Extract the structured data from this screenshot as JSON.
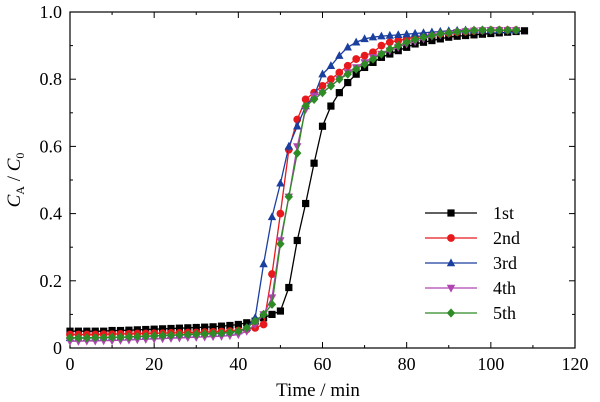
{
  "chart_data": {
    "type": "line",
    "xlabel": "Time / min",
    "ylabel_parts": {
      "c": "C",
      "a": "A",
      "slash": " / ",
      "c2": "C",
      "zero": "0"
    },
    "xlim": [
      0,
      120
    ],
    "ylim": [
      0,
      1.0
    ],
    "x_ticks": [
      "0",
      "20",
      "40",
      "60",
      "80",
      "100",
      "120"
    ],
    "y_ticks": [
      "0",
      "0.2",
      "0.4",
      "0.6",
      "0.8",
      "1.0"
    ],
    "x_tick_values": [
      0,
      20,
      40,
      60,
      80,
      100,
      120
    ],
    "y_tick_values": [
      0,
      0.2,
      0.4,
      0.6,
      0.8,
      1.0
    ],
    "grid": false,
    "legend_position": "right",
    "series": [
      {
        "name": "1st",
        "color": "#000000",
        "marker": "square",
        "x": [
          0,
          2,
          4,
          6,
          8,
          10,
          12,
          14,
          16,
          18,
          20,
          22,
          24,
          26,
          28,
          30,
          32,
          34,
          36,
          38,
          40,
          42,
          44,
          46,
          48,
          50,
          52,
          54,
          56,
          58,
          60,
          62,
          64,
          66,
          68,
          70,
          72,
          74,
          76,
          78,
          80,
          82,
          84,
          86,
          88,
          90,
          92,
          94,
          96,
          98,
          100,
          102,
          104,
          106,
          108
        ],
        "y": [
          0.05,
          0.05,
          0.05,
          0.05,
          0.05,
          0.052,
          0.052,
          0.053,
          0.054,
          0.055,
          0.056,
          0.057,
          0.058,
          0.059,
          0.06,
          0.061,
          0.062,
          0.063,
          0.065,
          0.067,
          0.07,
          0.075,
          0.08,
          0.09,
          0.1,
          0.11,
          0.18,
          0.32,
          0.43,
          0.55,
          0.66,
          0.72,
          0.76,
          0.79,
          0.815,
          0.835,
          0.85,
          0.865,
          0.875,
          0.885,
          0.895,
          0.905,
          0.91,
          0.915,
          0.92,
          0.925,
          0.928,
          0.93,
          0.932,
          0.934,
          0.936,
          0.938,
          0.94,
          0.942,
          0.944
        ]
      },
      {
        "name": "2nd",
        "color": "#e8191c",
        "marker": "circle",
        "x": [
          0,
          2,
          4,
          6,
          8,
          10,
          12,
          14,
          16,
          18,
          20,
          22,
          24,
          26,
          28,
          30,
          32,
          34,
          36,
          38,
          40,
          42,
          44,
          46,
          48,
          50,
          52,
          54,
          56,
          58,
          60,
          62,
          64,
          66,
          68,
          70,
          72,
          74,
          76,
          78,
          80,
          82,
          84,
          86,
          88,
          90,
          92,
          94,
          96,
          98,
          100,
          102,
          104,
          106
        ],
        "y": [
          0.04,
          0.04,
          0.04,
          0.04,
          0.041,
          0.041,
          0.042,
          0.042,
          0.043,
          0.043,
          0.044,
          0.044,
          0.045,
          0.045,
          0.046,
          0.046,
          0.047,
          0.048,
          0.049,
          0.05,
          0.052,
          0.055,
          0.06,
          0.07,
          0.22,
          0.4,
          0.59,
          0.68,
          0.74,
          0.76,
          0.78,
          0.8,
          0.82,
          0.84,
          0.86,
          0.87,
          0.88,
          0.9,
          0.91,
          0.915,
          0.92,
          0.925,
          0.93,
          0.932,
          0.935,
          0.937,
          0.94,
          0.942,
          0.944,
          0.945,
          0.946,
          0.946,
          0.946,
          0.946
        ]
      },
      {
        "name": "3rd",
        "color": "#1b3f9f",
        "marker": "triangle-up",
        "x": [
          0,
          2,
          4,
          6,
          8,
          10,
          12,
          14,
          16,
          18,
          20,
          22,
          24,
          26,
          28,
          30,
          32,
          34,
          36,
          38,
          40,
          42,
          44,
          46,
          48,
          50,
          52,
          54,
          56,
          58,
          60,
          62,
          64,
          66,
          68,
          70,
          72,
          74,
          76,
          78,
          80,
          82,
          84,
          86,
          88,
          90,
          92,
          94,
          96,
          98,
          100,
          102,
          104,
          106
        ],
        "y": [
          0.03,
          0.03,
          0.03,
          0.031,
          0.031,
          0.032,
          0.032,
          0.033,
          0.034,
          0.035,
          0.036,
          0.037,
          0.038,
          0.039,
          0.04,
          0.041,
          0.042,
          0.043,
          0.044,
          0.046,
          0.05,
          0.06,
          0.09,
          0.25,
          0.39,
          0.49,
          0.6,
          0.66,
          0.72,
          0.75,
          0.815,
          0.84,
          0.87,
          0.895,
          0.91,
          0.92,
          0.925,
          0.928,
          0.93,
          0.932,
          0.934,
          0.936,
          0.938,
          0.94,
          0.942,
          0.944,
          0.945,
          0.946,
          0.946,
          0.946,
          0.946,
          0.946,
          0.946,
          0.946
        ]
      },
      {
        "name": "4th",
        "color": "#b044b0",
        "marker": "triangle-down",
        "x": [
          0,
          2,
          4,
          6,
          8,
          10,
          12,
          14,
          16,
          18,
          20,
          22,
          24,
          26,
          28,
          30,
          32,
          34,
          36,
          38,
          40,
          42,
          44,
          46,
          48,
          50,
          52,
          54,
          56,
          58,
          60,
          62,
          64,
          66,
          68,
          70,
          72,
          74,
          76,
          78,
          80,
          82,
          84,
          86,
          88,
          90,
          92,
          94,
          96,
          98,
          100,
          102,
          104,
          106
        ],
        "y": [
          0.02,
          0.02,
          0.021,
          0.021,
          0.022,
          0.022,
          0.023,
          0.024,
          0.025,
          0.026,
          0.027,
          0.028,
          0.029,
          0.03,
          0.031,
          0.032,
          0.033,
          0.034,
          0.035,
          0.037,
          0.04,
          0.05,
          0.07,
          0.1,
          0.15,
          0.32,
          0.45,
          0.6,
          0.71,
          0.75,
          0.76,
          0.78,
          0.8,
          0.82,
          0.835,
          0.85,
          0.865,
          0.875,
          0.885,
          0.895,
          0.905,
          0.912,
          0.92,
          0.928,
          0.932,
          0.936,
          0.94,
          0.942,
          0.944,
          0.945,
          0.946,
          0.946,
          0.946,
          0.946
        ]
      },
      {
        "name": "5th",
        "color": "#2e8b26",
        "marker": "diamond",
        "x": [
          0,
          2,
          4,
          6,
          8,
          10,
          12,
          14,
          16,
          18,
          20,
          22,
          24,
          26,
          28,
          30,
          32,
          34,
          36,
          38,
          40,
          42,
          44,
          46,
          48,
          50,
          52,
          54,
          56,
          58,
          60,
          62,
          64,
          66,
          68,
          70,
          72,
          74,
          76,
          78,
          80,
          82,
          84,
          86,
          88,
          90,
          92,
          94,
          96,
          98,
          100,
          102,
          104,
          106
        ],
        "y": [
          0.03,
          0.03,
          0.03,
          0.031,
          0.031,
          0.032,
          0.032,
          0.033,
          0.034,
          0.035,
          0.036,
          0.037,
          0.038,
          0.039,
          0.04,
          0.041,
          0.042,
          0.043,
          0.044,
          0.046,
          0.05,
          0.06,
          0.08,
          0.1,
          0.13,
          0.31,
          0.45,
          0.58,
          0.72,
          0.74,
          0.76,
          0.78,
          0.8,
          0.815,
          0.83,
          0.845,
          0.86,
          0.875,
          0.89,
          0.9,
          0.91,
          0.918,
          0.925,
          0.93,
          0.935,
          0.938,
          0.941,
          0.943,
          0.945,
          0.946,
          0.946,
          0.946,
          0.946,
          0.946
        ]
      }
    ]
  }
}
